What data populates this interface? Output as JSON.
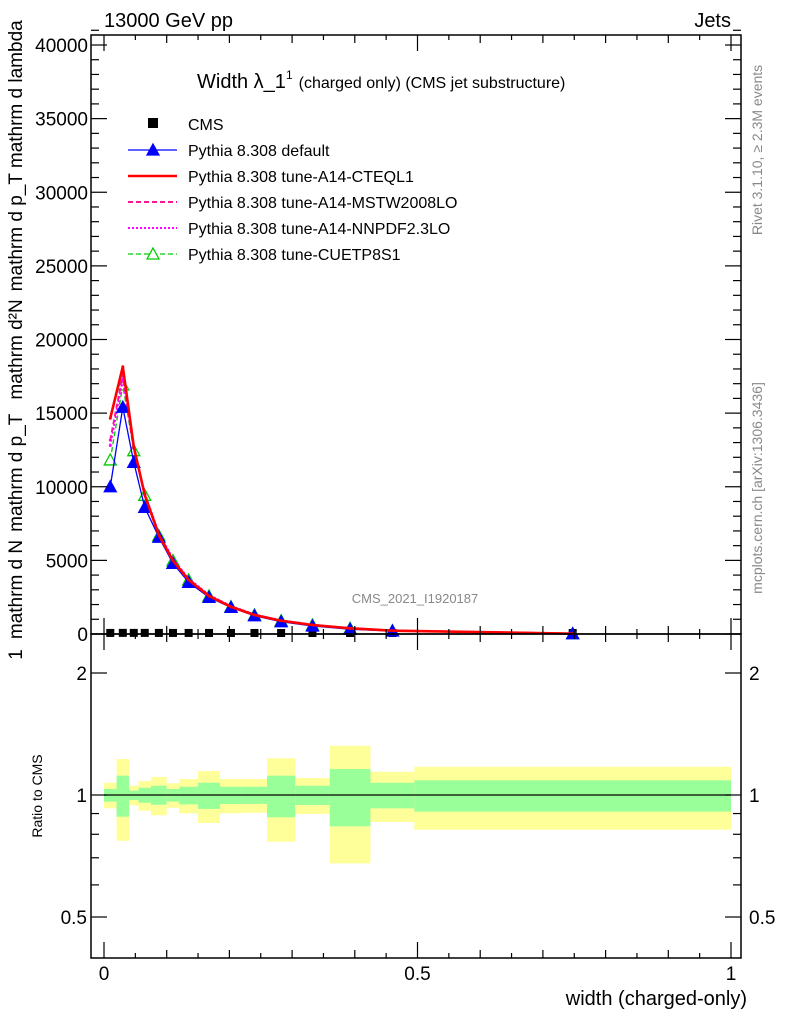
{
  "header": {
    "left": "13000 GeV pp",
    "right": "Jets"
  },
  "side_texts": {
    "rivet": "Rivet 3.1.10, ≥ 2.3M events",
    "mcplots": "mcplots.cern.ch [arXiv:1306.3436]"
  },
  "watermark": "CMS_2021_I1920187",
  "chart_data": [
    {
      "type": "line",
      "title_main": "Width λ_1",
      "title_sup": "1",
      "title_rest": "(charged only) (CMS jet substructure)",
      "ylabel_parts": {
        "num_top": "mathrm d²N",
        "num_sub": "mathrm d p_T mathrm d lambda",
        "one": "1",
        "den": "mathrm d N",
        "den_sub": "mathrm d p_T"
      },
      "xlabel": "width (charged-only)",
      "xlim": [
        0,
        1
      ],
      "ylim": [
        0,
        41000
      ],
      "yticks": [
        0,
        5000,
        10000,
        15000,
        20000,
        25000,
        30000,
        35000,
        40000
      ],
      "ytick_labels": [
        "0",
        "5000",
        "10000",
        "15000",
        "20000",
        "25000",
        "30000",
        "35000",
        "40000"
      ],
      "xticks": [
        0,
        0.5,
        1
      ],
      "xtick_labels": [
        "0",
        "0.5",
        "1"
      ],
      "legend_placement": "top-left",
      "bin_edges": [
        0,
        0.02,
        0.04,
        0.055,
        0.075,
        0.1,
        0.12,
        0.15,
        0.185,
        0.22,
        0.26,
        0.305,
        0.36,
        0.425,
        0.495,
        1.0
      ],
      "x": [
        0.01,
        0.03,
        0.0475,
        0.065,
        0.0875,
        0.11,
        0.135,
        0.1675,
        0.2025,
        0.24,
        0.2825,
        0.3325,
        0.3925,
        0.46,
        0.7475
      ],
      "series": [
        {
          "name": "CMS",
          "color": "#000000",
          "style": "marker-square",
          "values": [
            5,
            8,
            7,
            6,
            5,
            4,
            3,
            2.5,
            2,
            1.5,
            1,
            0.8,
            0.5,
            0.3,
            0.05
          ]
        },
        {
          "name": "Pythia 8.308 default",
          "color": "#0000ff",
          "style": "solid-filled-triangle",
          "values": [
            10000,
            15400,
            11660,
            8600,
            6570,
            4800,
            3510,
            2490,
            1810,
            1240,
            835,
            543,
            320,
            205,
            20
          ]
        },
        {
          "name": "Pythia 8.308 tune-A14-CTEQL1",
          "color": "#ff0000",
          "style": "solid-thick",
          "values": [
            14650,
            18150,
            12720,
            9440,
            6720,
            4980,
            3670,
            2580,
            1850,
            1290,
            900,
            610,
            385,
            225,
            25
          ]
        },
        {
          "name": "Pythia 8.308 tune-A14-MSTW2008LO",
          "color": "#ff1493",
          "style": "dashed",
          "values": [
            13170,
            17590,
            12600,
            9500,
            6800,
            5050,
            3720,
            2620,
            1880,
            1310,
            910,
            620,
            390,
            230,
            26
          ]
        },
        {
          "name": "Pythia 8.308 tune-A14-NNPDF2.3LO",
          "color": "#ff00ff",
          "style": "dotted",
          "values": [
            12800,
            17300,
            12650,
            9550,
            6850,
            5100,
            3760,
            2650,
            1900,
            1330,
            925,
            630,
            395,
            235,
            27
          ]
        },
        {
          "name": "Pythia 8.308 tune-CUETP8S1",
          "color": "#00cc00",
          "style": "dashed-open-triangle",
          "values": [
            11820,
            16910,
            12450,
            9420,
            6680,
            4980,
            3670,
            2580,
            1850,
            1290,
            900,
            610,
            385,
            225,
            25
          ]
        }
      ]
    },
    {
      "type": "area",
      "ylabel": "Ratio to CMS",
      "yscale": "log",
      "ylim": [
        0.4,
        2.5
      ],
      "yticks": [
        0.5,
        1,
        2
      ],
      "ytick_labels": [
        "0.5",
        "1",
        "2"
      ],
      "bin_edges": [
        0,
        0.02,
        0.04,
        0.055,
        0.075,
        0.1,
        0.12,
        0.15,
        0.185,
        0.22,
        0.26,
        0.305,
        0.36,
        0.425,
        0.495,
        1.0
      ],
      "stat_band": {
        "color": "#99ff99",
        "upper": [
          1.035,
          1.116,
          1.025,
          1.042,
          1.054,
          1.035,
          1.048,
          1.072,
          1.048,
          1.048,
          1.116,
          1.054,
          1.159,
          1.072,
          1.087
        ],
        "lower": [
          0.963,
          0.884,
          0.972,
          0.957,
          0.946,
          0.963,
          0.948,
          0.924,
          0.95,
          0.951,
          0.881,
          0.945,
          0.837,
          0.927,
          0.91
        ]
      },
      "total_band": {
        "color": "#ffff99",
        "upper": [
          1.072,
          1.227,
          1.054,
          1.083,
          1.108,
          1.069,
          1.095,
          1.146,
          1.095,
          1.095,
          1.232,
          1.101,
          1.323,
          1.141,
          1.174
        ],
        "lower": [
          0.927,
          0.771,
          0.943,
          0.915,
          0.891,
          0.93,
          0.901,
          0.853,
          0.901,
          0.904,
          0.767,
          0.898,
          0.678,
          0.858,
          0.821
        ]
      }
    }
  ]
}
